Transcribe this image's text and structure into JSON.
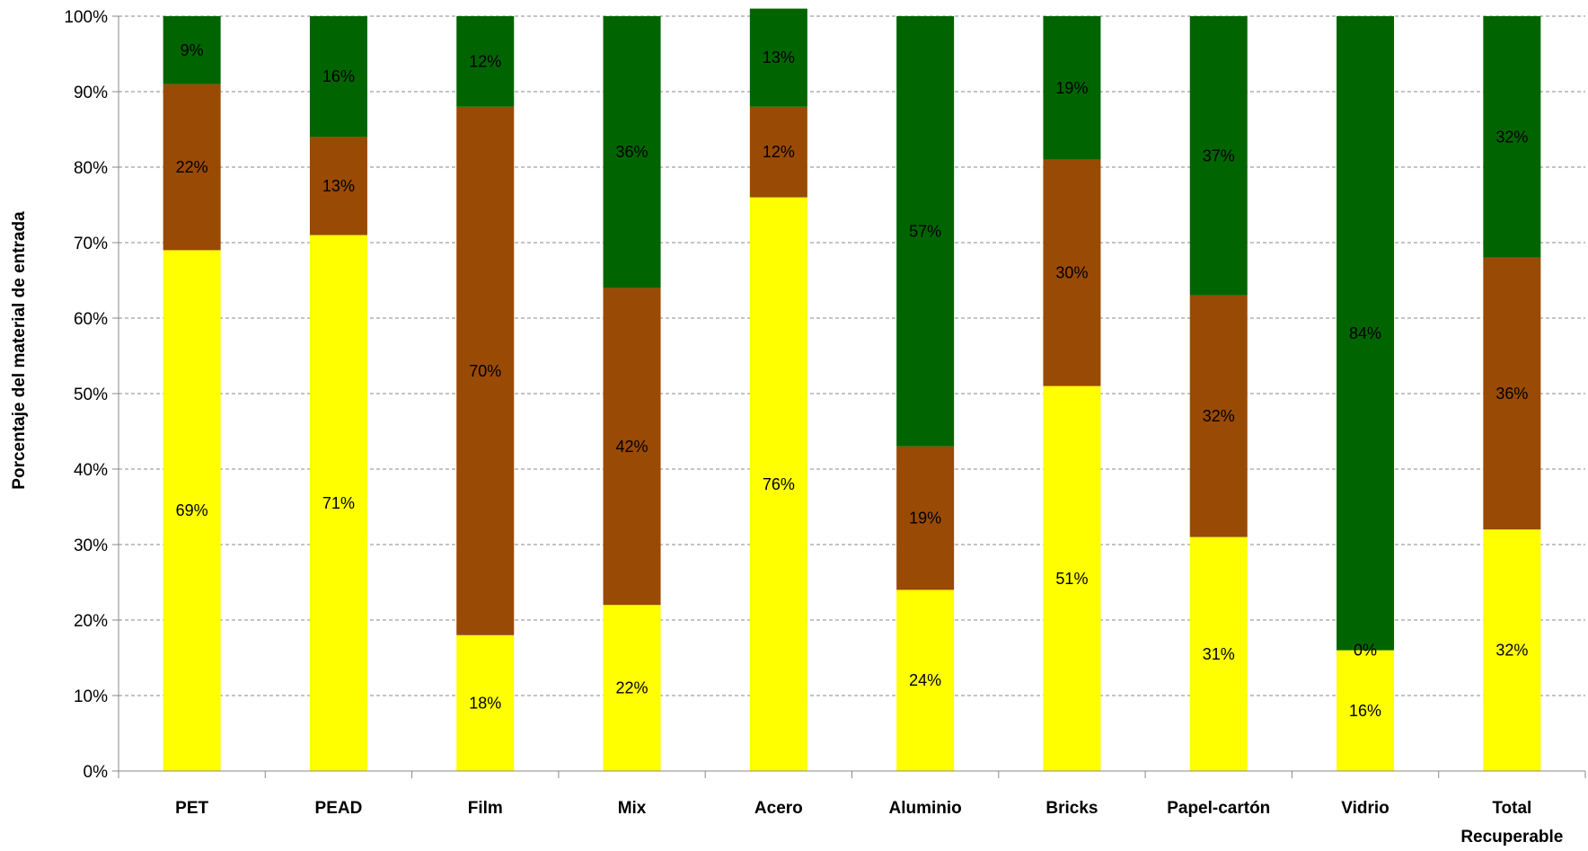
{
  "chart_data": {
    "type": "bar",
    "stacked": true,
    "percent_stacked": true,
    "title": "",
    "xlabel": "",
    "ylabel": "Porcentaje del material de entrada",
    "ylim": [
      0,
      100
    ],
    "y_ticks": [
      "0%",
      "10%",
      "20%",
      "30%",
      "40%",
      "50%",
      "60%",
      "70%",
      "80%",
      "90%",
      "100%"
    ],
    "grid": "horizontal-dashed",
    "legend": "none",
    "categories": [
      [
        "PET"
      ],
      [
        "PEAD"
      ],
      [
        "Film"
      ],
      [
        "Mix"
      ],
      [
        "Acero"
      ],
      [
        "Aluminio"
      ],
      [
        "Bricks"
      ],
      [
        "Papel-cartón"
      ],
      [
        "Vidrio"
      ],
      [
        "Total",
        "Recuperable"
      ]
    ],
    "series": [
      {
        "color": "#ffff00",
        "values": [
          69,
          71,
          18,
          22,
          76,
          24,
          51,
          31,
          16,
          32
        ],
        "labels": [
          "69%",
          "71%",
          "18%",
          "22%",
          "76%",
          "24%",
          "51%",
          "31%",
          "16%",
          "32%"
        ]
      },
      {
        "color": "#994a04",
        "values": [
          22,
          13,
          70,
          42,
          12,
          19,
          30,
          32,
          0,
          36
        ],
        "labels": [
          "22%",
          "13%",
          "70%",
          "42%",
          "12%",
          "19%",
          "30%",
          "32%",
          "0%",
          "36%"
        ]
      },
      {
        "color": "#006400",
        "values": [
          9,
          16,
          12,
          36,
          13,
          57,
          19,
          37,
          84,
          32
        ],
        "labels": [
          "9%",
          "16%",
          "12%",
          "36%",
          "13%",
          "57%",
          "19%",
          "37%",
          "84%",
          "32%"
        ]
      }
    ]
  }
}
